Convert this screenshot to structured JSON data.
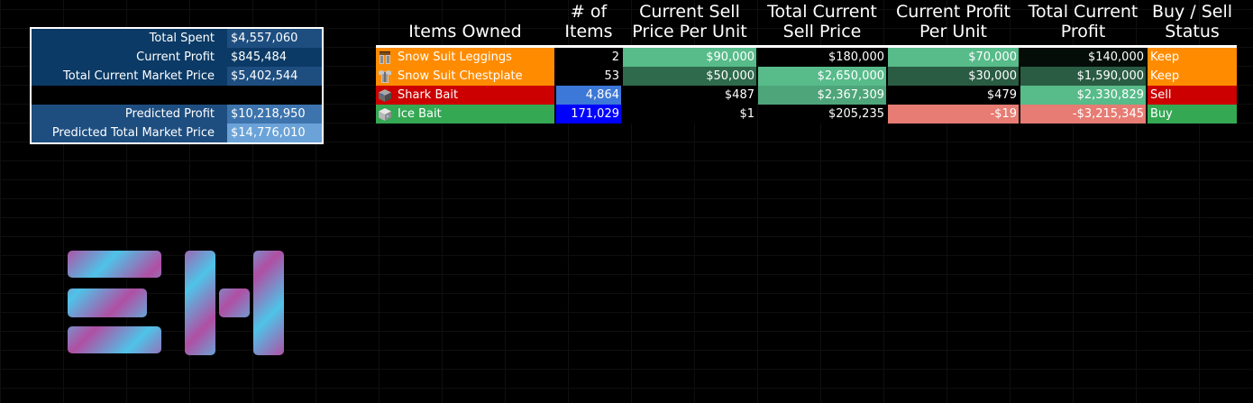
{
  "summary": {
    "rows": [
      {
        "label": "Total Spent",
        "value": "$4,557,060",
        "label_bg": "#0b3a66",
        "value_bg": "#1e4e80"
      },
      {
        "label": "Current Profit",
        "value": "$845,484",
        "label_bg": "#0b3a66",
        "value_bg": "#0b3a66"
      },
      {
        "label": "Total Current Market Price",
        "value": "$5,402,544",
        "label_bg": "#0b3a66",
        "value_bg": "#1e4e80"
      },
      {
        "label": "Predicted Profit",
        "value": "$10,218,950",
        "label_bg": "#1e4e80",
        "value_bg": "#3d74ad"
      },
      {
        "label": "Predicted Total Market Price",
        "value": "$14,776,010",
        "label_bg": "#1e4e80",
        "value_bg": "#6ba3d8"
      }
    ]
  },
  "table": {
    "headers": {
      "items_owned": "Items Owned",
      "num_items": "# of\nItems",
      "sell_price_per_unit": "Current Sell\nPrice Per Unit",
      "total_sell_price": "Total Current\nSell Price",
      "profit_per_unit": "Current Profit\nPer Unit",
      "total_profit": "Total Current\nProfit",
      "status": "Buy / Sell\nStatus"
    },
    "rows": [
      {
        "icon": "leggings-icon",
        "name": "Snow Suit Leggings",
        "count": "2",
        "sell_price": "$90,000",
        "total_sell": "$180,000",
        "profit_unit": "$70,000",
        "total_profit": "$140,000",
        "status": "Keep",
        "colors": {
          "name": "#ff8c00",
          "count": "#000000",
          "sell_price": "#57bb8a",
          "total_sell": "#000000",
          "profit_unit": "#57bb8a",
          "total_profit": "#050d09",
          "status": "#ff8c00"
        }
      },
      {
        "icon": "chestplate-icon",
        "name": "Snow Suit Chestplate",
        "count": "53",
        "sell_price": "$50,000",
        "total_sell": "$2,650,000",
        "profit_unit": "$30,000",
        "total_profit": "$1,590,000",
        "status": "Keep",
        "colors": {
          "name": "#ff8c00",
          "count": "#000000",
          "sell_price": "#2f6a4c",
          "total_sell": "#57bb8a",
          "profit_unit": "#2a5c43",
          "total_profit": "#2a5c43",
          "status": "#ff8c00"
        }
      },
      {
        "icon": "shark-bait-icon",
        "name": "Shark Bait",
        "count": "4,864",
        "sell_price": "$487",
        "total_sell": "$2,367,309",
        "profit_unit": "$479",
        "total_profit": "$2,330,829",
        "status": "Sell",
        "colors": {
          "name": "#cc0000",
          "count": "#3c78d8",
          "sell_price": "#000000",
          "total_sell": "#4ea57a",
          "profit_unit": "#000000",
          "total_profit": "#57bb8a",
          "status": "#cc0000"
        }
      },
      {
        "icon": "ice-bait-icon",
        "name": "Ice Bait",
        "count": "171,029",
        "sell_price": "$1",
        "total_sell": "$205,235",
        "profit_unit": "-$19",
        "total_profit": "-$3,215,345",
        "status": "Buy",
        "colors": {
          "name": "#34a853",
          "count": "#0000ff",
          "sell_price": "#000000",
          "total_sell": "#000000",
          "profit_unit": "#e67c73",
          "total_profit": "#e67c73",
          "status": "#34a853"
        }
      }
    ]
  },
  "logo": {
    "icon": "eh-logo-icon",
    "gradient": [
      "#4fc3e8",
      "#b04fa3"
    ]
  }
}
